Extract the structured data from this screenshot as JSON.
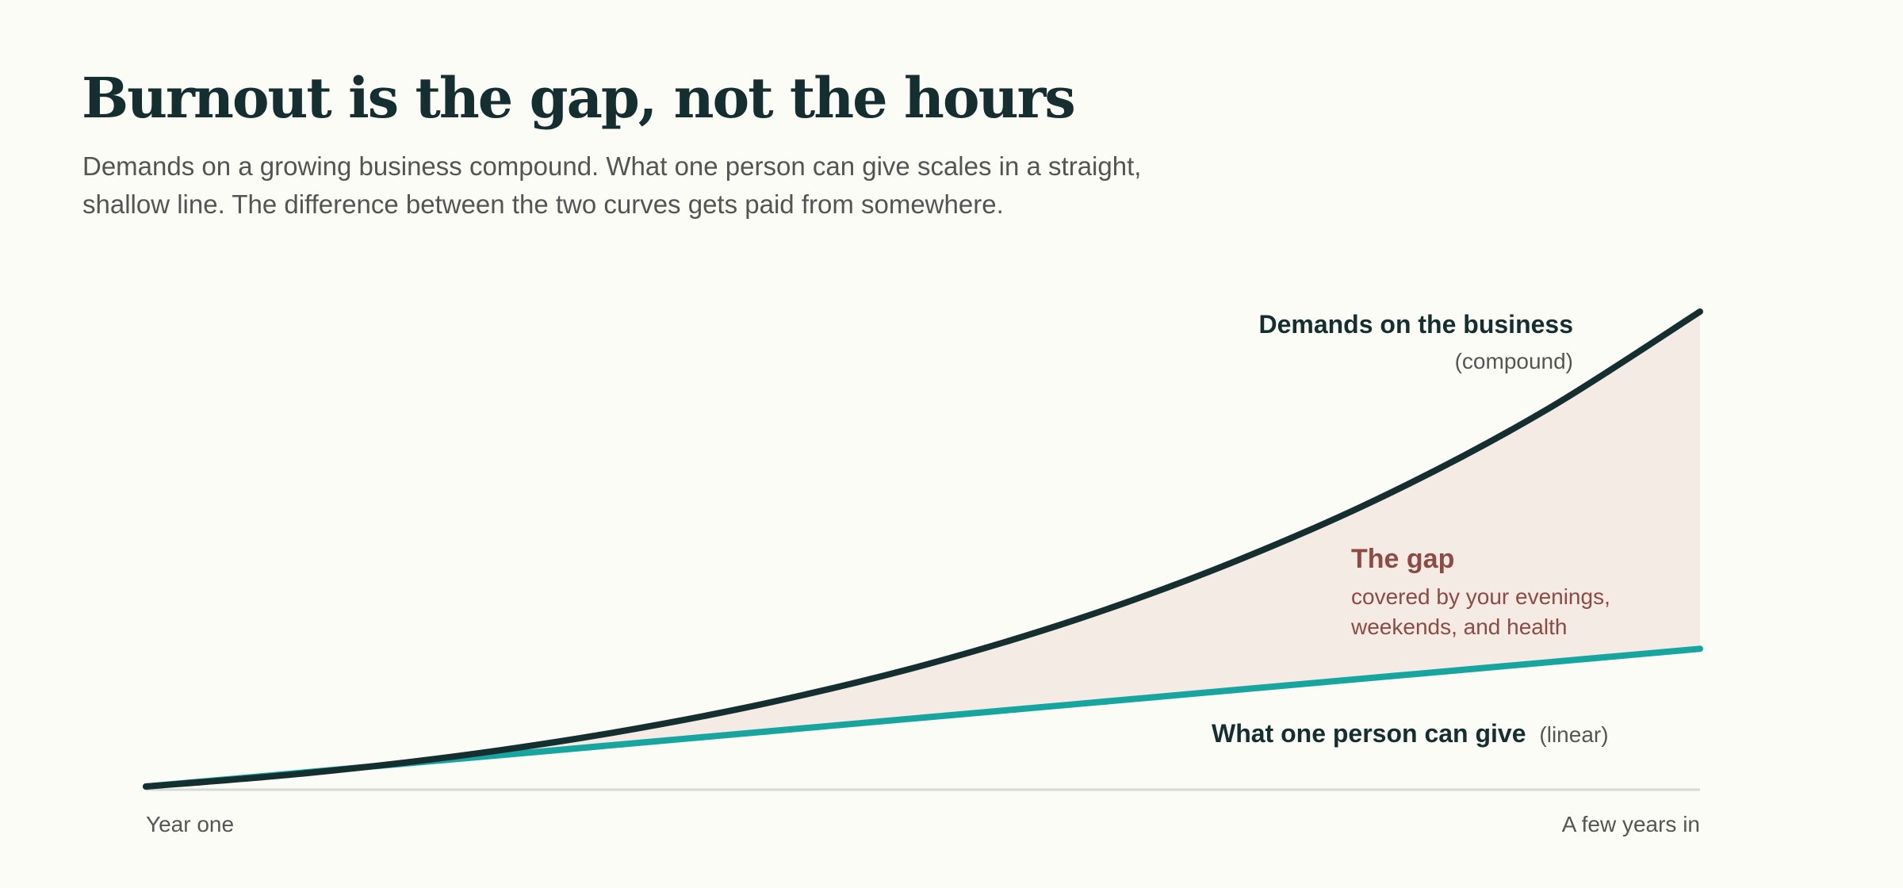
{
  "header": {
    "title": "Burnout is the gap, not the hours",
    "subtitle": "Demands on a growing business compound. What one person can give scales in a straight, shallow line. The difference between the two curves gets paid from somewhere."
  },
  "chart_data": {
    "type": "line",
    "x_labels": {
      "start": "Year one",
      "end": "A few years in"
    },
    "xlim": [
      0,
      1
    ],
    "ylim": [
      0,
      1
    ],
    "grid": false,
    "series": [
      {
        "name": "Demands on the business",
        "qualifier": "(compound)",
        "color": "#152f30",
        "x": [
          0,
          0.1,
          0.2,
          0.3,
          0.4,
          0.5,
          0.6,
          0.7,
          0.8,
          0.9,
          1.0
        ],
        "y": [
          0,
          0.027,
          0.064,
          0.113,
          0.176,
          0.255,
          0.353,
          0.473,
          0.617,
          0.791,
          1.0
        ]
      },
      {
        "name": "What one person can give",
        "qualifier": "(linear)",
        "color": "#16a59f",
        "x": [
          0,
          0.1,
          0.2,
          0.3,
          0.4,
          0.5,
          0.6,
          0.7,
          0.8,
          0.9,
          1.0
        ],
        "y": [
          0,
          0.029,
          0.058,
          0.087,
          0.116,
          0.145,
          0.174,
          0.203,
          0.232,
          0.261,
          0.29
        ]
      }
    ],
    "gap": {
      "label": "The gap",
      "note_line1": "covered by your evenings,",
      "note_line2": "weekends, and health",
      "fill_color": "#f4ebe5",
      "text_color": "#8f4a42"
    },
    "baseline_color": "#d5dad5"
  }
}
